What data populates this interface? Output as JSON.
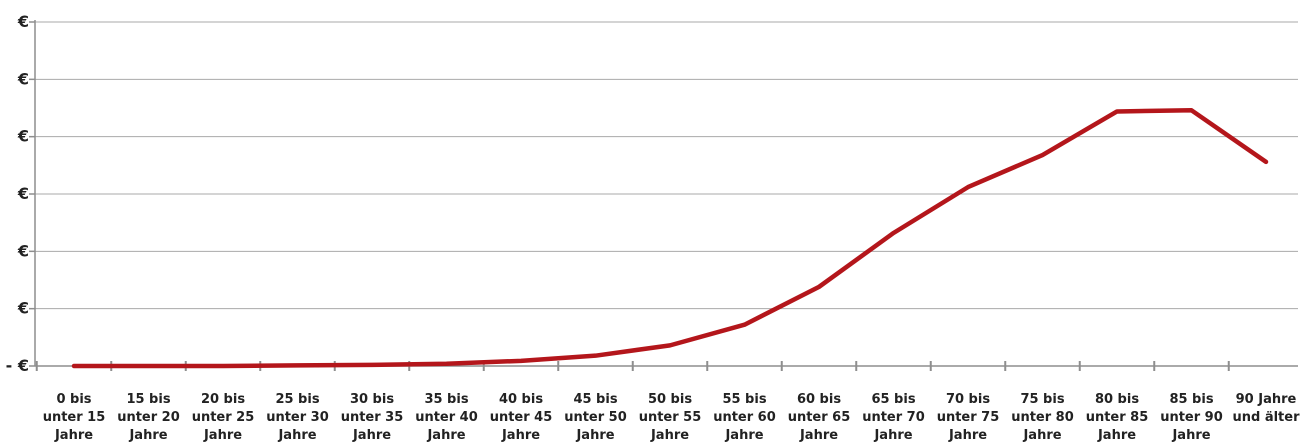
{
  "chart_data": {
    "type": "line",
    "title": "",
    "xlabel": "",
    "ylabel": "",
    "grid": true,
    "legend": "none",
    "colors": {
      "line": "#b4161b",
      "grid": "#a9a9a9",
      "axis": "#8e8e8e"
    },
    "y_tick_labels": [
      "- €",
      "€",
      "€",
      "€",
      "€",
      "€",
      "€"
    ],
    "categories": [
      [
        "0 bis",
        "unter 15",
        "Jahre"
      ],
      [
        "15 bis",
        "unter 20",
        "Jahre"
      ],
      [
        "20 bis",
        "unter 25",
        "Jahre"
      ],
      [
        "25 bis",
        "unter 30",
        "Jahre"
      ],
      [
        "30 bis",
        "unter 35",
        "Jahre"
      ],
      [
        "35 bis",
        "unter 40",
        "Jahre"
      ],
      [
        "40 bis",
        "unter 45",
        "Jahre"
      ],
      [
        "45 bis",
        "unter 50",
        "Jahre"
      ],
      [
        "50 bis",
        "unter 55",
        "Jahre"
      ],
      [
        "55 bis",
        "unter 60",
        "Jahre"
      ],
      [
        "60 bis",
        "unter 65",
        "Jahre"
      ],
      [
        "65 bis",
        "unter 70",
        "Jahre"
      ],
      [
        "70 bis",
        "unter 75",
        "Jahre"
      ],
      [
        "75 bis",
        "unter 80",
        "Jahre"
      ],
      [
        "80 bis",
        "unter 85",
        "Jahre"
      ],
      [
        "85 bis",
        "unter 90",
        "Jahre"
      ],
      [
        "90 Jahre",
        "und älter",
        ""
      ]
    ],
    "ylim": [
      0,
      6
    ],
    "series": [
      {
        "values": [
          0.0,
          0.0,
          0.0,
          0.01,
          0.02,
          0.04,
          0.09,
          0.18,
          0.36,
          0.72,
          1.38,
          2.32,
          3.12,
          3.68,
          4.44,
          4.46,
          3.56
        ]
      }
    ]
  }
}
